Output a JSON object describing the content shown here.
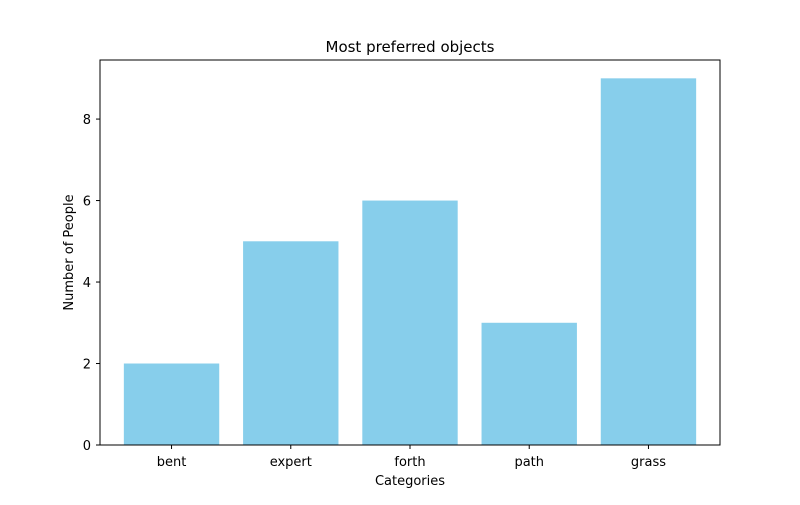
{
  "chart_data": {
    "type": "bar",
    "title": "Most preferred objects",
    "xlabel": "Categories",
    "ylabel": "Number of People",
    "categories": [
      "bent",
      "expert",
      "forth",
      "path",
      "grass"
    ],
    "values": [
      2,
      5,
      6,
      3,
      9
    ],
    "ylim": [
      0,
      9.45
    ],
    "yticks": [
      0,
      2,
      4,
      6,
      8
    ],
    "bar_color": "#87ceeb",
    "grid": false,
    "legend": "none"
  }
}
